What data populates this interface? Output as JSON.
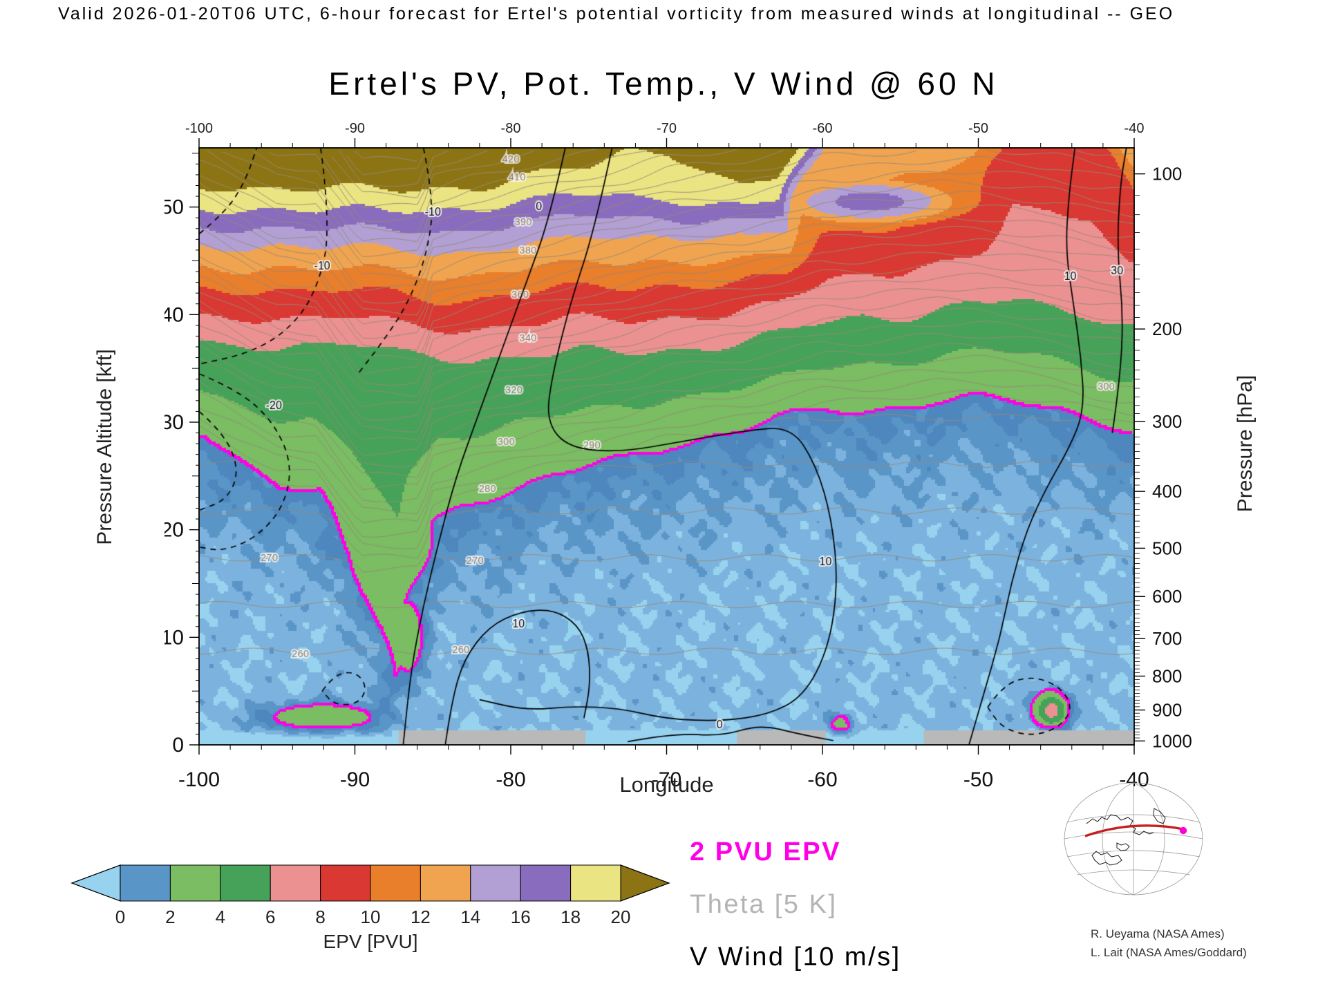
{
  "header": {
    "valid_line": "Valid 2026-01-20T06 UTC,  6-hour forecast for Ertel's potential vorticity from measured winds at longitudinal -- GEO"
  },
  "title": "Ertel's PV, Pot. Temp., V Wind @ 60 N",
  "axes": {
    "x": {
      "label": "Longitude",
      "min": -100,
      "max": -40,
      "major_ticks": [
        -100,
        -90,
        -80,
        -70,
        -60,
        -50,
        -40
      ],
      "minor_step": 2
    },
    "y_left": {
      "label": "Pressure Altitude [kft]",
      "min": 0,
      "max": 55.5,
      "major_ticks": [
        0,
        10,
        20,
        30,
        40,
        50
      ]
    },
    "y_right": {
      "label": "Pressure [hPa]",
      "major_ticks": [
        100,
        200,
        300,
        400,
        500,
        600,
        700,
        800,
        900,
        1000
      ]
    }
  },
  "colorbar": {
    "label": "EPV [PVU]",
    "tick_labels": [
      0,
      2,
      4,
      6,
      8,
      10,
      12,
      14,
      16,
      18,
      20
    ],
    "under_color": "#97d3ef",
    "colors": [
      "#5a95c8",
      "#7abd62",
      "#46a258",
      "#ec9191",
      "#da3832",
      "#e97e2b",
      "#f0a44f",
      "#b2a0d5",
      "#8a6cbe",
      "#ebe483"
    ],
    "over_color": "#8c7414"
  },
  "legend": [
    {
      "text": "2 PVU EPV",
      "color": "#ff00e6"
    },
    {
      "text": "Theta [5 K]",
      "color": "#b4b4b4"
    },
    {
      "text": "V Wind [10 m/s]",
      "color": "#000000"
    }
  ],
  "credits": [
    "R. Ueyama (NASA Ames)",
    "L. Lait (NASA Ames/Goddard)"
  ],
  "chart_data": {
    "type": "heatmap",
    "title": "Ertel's PV, Pot. Temp., V Wind @ 60 N",
    "x": {
      "name": "Longitude",
      "range": [
        -100,
        -40
      ]
    },
    "y": {
      "name": "Pressure Altitude [kft]",
      "range": [
        0,
        55.5
      ]
    },
    "units": {
      "epv": "PVU",
      "theta": "K",
      "v_wind": "m/s"
    },
    "epv_levels": [
      0,
      2,
      4,
      6,
      8,
      10,
      12,
      14,
      16,
      18,
      20
    ],
    "pv2_contour_color": "#ff00e6",
    "epv": {
      "lons": [
        -100,
        -97.5,
        -95,
        -92.5,
        -90,
        -87.5,
        -85,
        -82.5,
        -80,
        -77.5,
        -75,
        -72.5,
        -70,
        -67.5,
        -65,
        -62.5,
        -60,
        -57.5,
        -55,
        -52.5,
        -50,
        -47.5,
        -45,
        -42.5,
        -40
      ],
      "surfaces": {
        "pv2": [
          29,
          26.5,
          24,
          23.5,
          17,
          6,
          21,
          22.5,
          23.5,
          24.5,
          25.5,
          26.5,
          28,
          28.5,
          29,
          30,
          31,
          31,
          31.5,
          32,
          32,
          31.5,
          31,
          30,
          29.5
        ],
        "pv6": [
          37.5,
          37.5,
          37,
          37,
          37,
          36.5,
          36.5,
          36,
          36,
          36,
          36.5,
          36.5,
          37,
          37,
          37.5,
          38,
          39,
          40,
          40,
          40.5,
          41,
          41,
          40.5,
          40,
          39
        ],
        "pv10": [
          42.5,
          42.5,
          42.5,
          42,
          42,
          42,
          41.5,
          41.5,
          42,
          42,
          42.5,
          42.5,
          43,
          43,
          43,
          43.5,
          47,
          48,
          48.5,
          49,
          50,
          58,
          59,
          58,
          51
        ],
        "pv14": [
          46.5,
          46.5,
          46.5,
          46,
          46,
          46,
          46,
          46,
          46.5,
          46.5,
          47,
          47,
          47.5,
          47.5,
          47,
          47.5,
          56,
          57,
          58,
          58,
          59,
          62,
          63,
          62,
          57
        ],
        "pv18": [
          50,
          50,
          50,
          49.5,
          49.5,
          49.5,
          50,
          50,
          50.5,
          50.5,
          51,
          51,
          51,
          50.5,
          50,
          50.5,
          59,
          60,
          61,
          61,
          62,
          64,
          65,
          64,
          60
        ],
        "pv20": [
          52,
          52,
          52,
          51.5,
          51.5,
          51.5,
          52,
          52,
          52.5,
          53,
          53.5,
          55.5,
          55.5,
          53.5,
          52,
          52.5,
          61,
          62,
          63,
          63,
          64,
          66,
          67,
          66,
          62
        ],
        "pv23": [
          54,
          54,
          54,
          53.5,
          53.5,
          53.5,
          54,
          54.5,
          55,
          55.5,
          56,
          57.5,
          57.5,
          55,
          54,
          54.5,
          63,
          64,
          65,
          65,
          66,
          68,
          69,
          68,
          64
        ]
      },
      "boundary_layer_epv": 0.2,
      "features": [
        {
          "lon": -92,
          "z": 2.5,
          "amp": 3.2,
          "rlon": 4.5,
          "rz": 1.6
        },
        {
          "lon": -86.6,
          "z": 10,
          "amp": 3.0,
          "rlon": 1.5,
          "rz": 5
        },
        {
          "lon": -45.3,
          "z": 3.2,
          "amp": 7,
          "rlon": 1.1,
          "rz": 1.6
        },
        {
          "lon": -58.8,
          "z": 1.8,
          "amp": 2.8,
          "rlon": 0.9,
          "rz": 1.2
        },
        {
          "lon": -57,
          "z": 50.5,
          "amp": 17,
          "rlon": 9,
          "rz": 3.4
        }
      ]
    },
    "theta": {
      "surface_K": 250,
      "tropo_lapse_K_per_kft": 1.15,
      "strat_lapse_K_per_kft": 4.6,
      "contour_interval_K": 5,
      "labels": [
        {
          "t": 420,
          "lon": -80
        },
        {
          "t": 410,
          "lon": -79.6
        },
        {
          "t": 390,
          "lon": -79.2
        },
        {
          "t": 380,
          "lon": -78.9
        },
        {
          "t": 360,
          "lon": -79.4
        },
        {
          "t": 340,
          "lon": -78.9
        },
        {
          "t": 320,
          "lon": -79.8
        },
        {
          "t": 300,
          "lon": -80.3
        },
        {
          "t": 290,
          "lon": -74.8
        },
        {
          "t": 280,
          "lon": -81.5
        },
        {
          "t": 270,
          "lon": -82.3
        },
        {
          "t": 260,
          "lon": -83.2
        },
        {
          "t": 270,
          "lon": -95.5
        },
        {
          "t": 260,
          "lon": -93.5
        },
        {
          "t": 300,
          "lon": -41.8
        }
      ]
    },
    "v_wind": {
      "contour_interval_ms": 10,
      "lines": [
        {
          "level": 0,
          "style": "solid",
          "points": [
            [
              -76.5,
              55.5
            ],
            [
              -77.5,
              49
            ],
            [
              -79,
              43
            ],
            [
              -80.5,
              37
            ],
            [
              -82,
              31
            ],
            [
              -83.5,
              25
            ],
            [
              -84.6,
              19
            ],
            [
              -85.6,
              13
            ],
            [
              -86.4,
              7
            ],
            [
              -86.9,
              0
            ]
          ],
          "label": {
            "text": "0",
            "lon": -78.2,
            "z": 50
          }
        },
        {
          "level": 10,
          "style": "solid",
          "points": [
            [
              -73.5,
              55.5
            ],
            [
              -74.6,
              48
            ],
            [
              -76.2,
              41
            ],
            [
              -77.4,
              34
            ],
            [
              -77.7,
              30
            ],
            [
              -76.3,
              27.6
            ],
            [
              -73,
              27.2
            ],
            [
              -69,
              28.2
            ],
            [
              -65,
              29.2
            ],
            [
              -62,
              29.6
            ],
            [
              -60.4,
              26
            ],
            [
              -59.4,
              21
            ],
            [
              -59,
              15
            ],
            [
              -59.6,
              9
            ],
            [
              -61.2,
              4.5
            ],
            [
              -63.5,
              2.8
            ],
            [
              -66.5,
              2.2
            ],
            [
              -70,
              2.4
            ],
            [
              -73,
              3.4
            ],
            [
              -76,
              3.6
            ],
            [
              -79,
              3.2
            ],
            [
              -82,
              4.2
            ]
          ],
          "label": {
            "text": "10",
            "lon": -59.8,
            "z": 17
          }
        },
        {
          "level": 10,
          "style": "solid",
          "points": [
            [
              -84.2,
              0
            ],
            [
              -83.8,
              4
            ],
            [
              -83,
              8
            ],
            [
              -81.4,
              11
            ],
            [
              -79.4,
              12.4
            ],
            [
              -77.3,
              12.6
            ],
            [
              -75.7,
              11.2
            ],
            [
              -75,
              8.8
            ],
            [
              -74.9,
              5.5
            ],
            [
              -75.3,
              2.5
            ]
          ],
          "label": {
            "text": "10",
            "lon": -79.5,
            "z": 11.2
          }
        },
        {
          "level": 0,
          "style": "solid",
          "points": [
            [
              -72.5,
              0.3
            ],
            [
              -69.5,
              1.1
            ],
            [
              -66.5,
              0.8
            ],
            [
              -64,
              1.9
            ],
            [
              -61.5,
              1
            ],
            [
              -59.3,
              0.4
            ]
          ],
          "label": {
            "text": "0",
            "lon": -66.6,
            "z": 1.8
          }
        },
        {
          "level": 10,
          "style": "solid",
          "points": [
            [
              -50.6,
              0
            ],
            [
              -49.6,
              5
            ],
            [
              -48.6,
              10
            ],
            [
              -47.9,
              15
            ],
            [
              -46.9,
              20
            ],
            [
              -45.6,
              24
            ],
            [
              -44.2,
              27.5
            ],
            [
              -43.2,
              31
            ],
            [
              -43.4,
              36
            ],
            [
              -43.9,
              41
            ],
            [
              -44.4,
              46
            ],
            [
              -44.2,
              51
            ],
            [
              -43.8,
              55.5
            ]
          ],
          "label": {
            "text": "10",
            "lon": -44.1,
            "z": 43.5
          }
        },
        {
          "level": 30,
          "style": "solid",
          "points": [
            [
              -41.4,
              29
            ],
            [
              -40.9,
              34
            ],
            [
              -40.7,
              40
            ],
            [
              -41.1,
              46
            ],
            [
              -40.9,
              52
            ],
            [
              -40.5,
              55.5
            ]
          ],
          "label": {
            "text": "30",
            "lon": -41.1,
            "z": 44
          }
        },
        {
          "level": -20,
          "style": "dash",
          "points": [
            [
              -100,
              34.5
            ],
            [
              -97.5,
              33
            ],
            [
              -95.2,
              30
            ],
            [
              -94,
              26
            ],
            [
              -94.6,
              22
            ],
            [
              -96.4,
              19.2
            ],
            [
              -98.5,
              18
            ],
            [
              -100,
              18.4
            ]
          ],
          "label": {
            "text": "-20",
            "lon": -95.2,
            "z": 31.5
          }
        },
        {
          "level": -30,
          "style": "dash",
          "points": [
            [
              -100,
              31
            ],
            [
              -98.4,
              29
            ],
            [
              -97.4,
              25.5
            ],
            [
              -98.2,
              22.8
            ],
            [
              -100,
              21.8
            ]
          ]
        },
        {
          "level": -10,
          "style": "dash",
          "points": [
            [
              -92.2,
              55.5
            ],
            [
              -91.5,
              48
            ],
            [
              -92.5,
              42
            ],
            [
              -94.3,
              38.5
            ],
            [
              -96.8,
              36.4
            ],
            [
              -100,
              35.4
            ]
          ],
          "label": {
            "text": "-10",
            "lon": -92.1,
            "z": 44.5
          }
        },
        {
          "level": -10,
          "style": "dash",
          "points": [
            [
              -85.6,
              55.5
            ],
            [
              -84.9,
              50.5
            ],
            [
              -85.4,
              45.5
            ],
            [
              -86.6,
              41
            ],
            [
              -88.2,
              37.5
            ],
            [
              -89.8,
              34.5
            ]
          ],
          "label": {
            "text": "-10",
            "lon": -85,
            "z": 49.5
          }
        },
        {
          "level": -10,
          "style": "dash",
          "points": [
            [
              -49.4,
              3.5
            ],
            [
              -48.4,
              5.6
            ],
            [
              -46.6,
              6.4
            ],
            [
              -44.8,
              5.5
            ],
            [
              -43.9,
              3.4
            ],
            [
              -44.9,
              1.5
            ],
            [
              -46.7,
              0.8
            ],
            [
              -48.5,
              1.6
            ],
            [
              -49.4,
              3.5
            ]
          ]
        },
        {
          "level": -10,
          "style": "dash",
          "points": [
            [
              -92.1,
              5
            ],
            [
              -91.3,
              6.6
            ],
            [
              -89.9,
              6.8
            ],
            [
              -89.2,
              5.3
            ],
            [
              -89.8,
              3.8
            ],
            [
              -91.3,
              3.7
            ],
            [
              -92.1,
              5
            ]
          ]
        },
        {
          "level": -20,
          "style": "dash",
          "points": [
            [
              -100,
              47.5
            ],
            [
              -98.3,
              49.5
            ],
            [
              -97,
              52.5
            ],
            [
              -96.3,
              55.5
            ]
          ]
        }
      ]
    },
    "terrain_gaps_lon": [
      [
        -87.2,
        -75.2
      ],
      [
        -65.5,
        -59.8
      ],
      [
        -53.5,
        -40
      ]
    ]
  }
}
